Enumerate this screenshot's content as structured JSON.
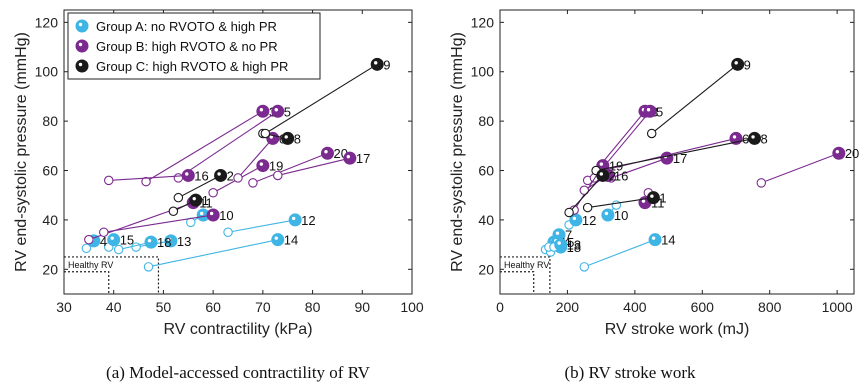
{
  "figure": {
    "legend": {
      "placement": "top-left of left panel",
      "items": [
        {
          "label": "Group A: no RVOTO & high PR",
          "color": "#3fb5e5"
        },
        {
          "label": "Group B: high RVOTO & no PR",
          "color": "#7b2a8f"
        },
        {
          "label": "Group C: high RVOTO & high PR",
          "color": "#1a1a1a"
        }
      ]
    },
    "healthy_label": "Healthy RV"
  },
  "chart_data": [
    {
      "type": "scatter",
      "caption": "(a) Model-accessed contractility of RV",
      "xlabel": "RV contractility (kPa)",
      "ylabel": "RV end-systolic pressure (mmHg)",
      "xlim": [
        30,
        100
      ],
      "ylim": [
        10,
        125
      ],
      "xticks": [
        "30",
        "40",
        "50",
        "60",
        "70",
        "80",
        "90",
        "100"
      ],
      "yticks": [
        "20",
        "40",
        "60",
        "80",
        "100",
        "120"
      ],
      "grid": false,
      "healthy_region": {
        "x_max": [
          49,
          39
        ],
        "y_max": [
          25,
          19
        ]
      },
      "series": [
        {
          "name": "Group A: no RVOTO & high PR",
          "color": "#3fb5e5",
          "pairs": [
            {
              "label": "12",
              "pre": [
                63,
                35
              ],
              "post": [
                76.5,
                40
              ]
            },
            {
              "label": "14",
              "pre": [
                47,
                21
              ],
              "post": [
                73,
                32
              ]
            },
            {
              "label": "15",
              "pre": [
                39,
                29
              ],
              "post": [
                40,
                32
              ]
            },
            {
              "label": "13",
              "pre": [
                44.5,
                29
              ],
              "post": [
                51.5,
                31.5
              ]
            },
            {
              "label": "18",
              "pre": [
                41,
                28
              ],
              "post": [
                47.5,
                31
              ]
            },
            {
              "label": "4",
              "pre": [
                34.5,
                28.5
              ],
              "post": [
                36,
                31.5
              ]
            },
            {
              "label": "7",
              "pre": [
                55.5,
                39
              ],
              "post": [
                58,
                42
              ]
            }
          ]
        },
        {
          "name": "Group B: high RVOTO & no PR",
          "color": "#7b2a8f",
          "pairs": [
            {
              "label": "3",
              "pre": [
                46.5,
                55.5
              ],
              "post": [
                70,
                84
              ]
            },
            {
              "label": "5",
              "pre": [
                53,
                57
              ],
              "post": [
                73,
                84
              ]
            },
            {
              "label": "16",
              "pre": [
                39,
                56
              ],
              "post": [
                55,
                58
              ]
            },
            {
              "label": "20",
              "pre": [
                68,
                55
              ],
              "post": [
                83,
                67
              ]
            },
            {
              "label": "17",
              "pre": [
                73,
                58
              ],
              "post": [
                87.5,
                65
              ]
            },
            {
              "label": "19",
              "pre": [
                60,
                51
              ],
              "post": [
                70,
                62
              ]
            },
            {
              "label": "6",
              "pre": [
                65,
                57
              ],
              "post": [
                72,
                73
              ]
            },
            {
              "label": "11",
              "pre": [
                35,
                32
              ],
              "post": [
                56,
                47
              ]
            },
            {
              "label": "10",
              "pre": [
                38,
                35
              ],
              "post": [
                60,
                42
              ]
            }
          ]
        },
        {
          "name": "Group C: high RVOTO & high PR",
          "color": "#1a1a1a",
          "pairs": [
            {
              "label": "8",
              "pre": [
                70,
                75
              ],
              "post": [
                75,
                73
              ]
            },
            {
              "label": "9",
              "pre": [
                70.5,
                75
              ],
              "post": [
                93,
                103
              ]
            },
            {
              "label": "2",
              "pre": [
                53,
                49
              ],
              "post": [
                61.5,
                58
              ]
            },
            {
              "label": "1",
              "pre": [
                52,
                43.5
              ],
              "post": [
                56.5,
                48
              ]
            }
          ]
        }
      ]
    },
    {
      "type": "scatter",
      "caption": "(b) RV stroke work",
      "xlabel": "RV stroke work (mJ)",
      "ylabel": "RV end-systolic pressure (mmHg)",
      "xlim": [
        0,
        1050
      ],
      "ylim": [
        10,
        125
      ],
      "xticks": [
        "0",
        "200",
        "400",
        "600",
        "800",
        "1000"
      ],
      "yticks": [
        "20",
        "40",
        "60",
        "80",
        "100",
        "120"
      ],
      "grid": false,
      "healthy_region": {
        "x_max": [
          148,
          100
        ],
        "y_max": [
          25,
          19
        ]
      },
      "series": [
        {
          "name": "Group A: no RVOTO & high PR",
          "color": "#3fb5e5",
          "pairs": [
            {
              "label": "14",
              "pre": [
                250,
                21
              ],
              "post": [
                460,
                32
              ]
            },
            {
              "label": "10",
              "pre": [
                345,
                46
              ],
              "post": [
                320,
                42
              ]
            },
            {
              "label": "12",
              "pre": [
                205,
                38
              ],
              "post": [
                225,
                40
              ]
            },
            {
              "label": "7",
              "pre": [
                180,
                34
              ],
              "post": [
                175,
                34
              ]
            },
            {
              "label": "15",
              "pre": [
                135,
                28
              ],
              "post": [
                160,
                31
              ]
            },
            {
              "label": "18",
              "pre": [
                150,
                27
              ],
              "post": [
                180,
                29
              ]
            },
            {
              "label": "4",
              "pre": [
                145,
                29
              ],
              "post": [
                170,
                31
              ]
            },
            {
              "label": "13",
              "pre": [
                160,
                29
              ],
              "post": [
                180,
                30
              ]
            }
          ]
        },
        {
          "name": "Group B: high RVOTO & no PR",
          "color": "#7b2a8f",
          "pairs": [
            {
              "label": "3",
              "pre": [
                260,
                56
              ],
              "post": [
                430,
                84
              ]
            },
            {
              "label": "5",
              "pre": [
                280,
                57
              ],
              "post": [
                445,
                84
              ]
            },
            {
              "label": "20",
              "pre": [
                775,
                55
              ],
              "post": [
                1005,
                67
              ]
            },
            {
              "label": "17",
              "pre": [
                330,
                57
              ],
              "post": [
                495,
                65
              ]
            },
            {
              "label": "6",
              "pre": [
                305,
                60
              ],
              "post": [
                700,
                73
              ]
            },
            {
              "label": "19",
              "pre": [
                220,
                44
              ],
              "post": [
                305,
                62
              ]
            },
            {
              "label": "16",
              "pre": [
                250,
                52
              ],
              "post": [
                320,
                58
              ]
            },
            {
              "label": "11",
              "pre": [
                440,
                51
              ],
              "post": [
                430,
                47
              ]
            }
          ]
        },
        {
          "name": "Group C: high RVOTO & high PR",
          "color": "#1a1a1a",
          "pairs": [
            {
              "label": "9",
              "pre": [
                450,
                75
              ],
              "post": [
                705,
                103
              ]
            },
            {
              "label": "8",
              "pre": [
                285,
                60
              ],
              "post": [
                755,
                73
              ]
            },
            {
              "label": "2",
              "pre": [
                205,
                43
              ],
              "post": [
                305,
                58
              ]
            },
            {
              "label": "1",
              "pre": [
                260,
                45
              ],
              "post": [
                455,
                49
              ]
            }
          ]
        }
      ]
    }
  ]
}
